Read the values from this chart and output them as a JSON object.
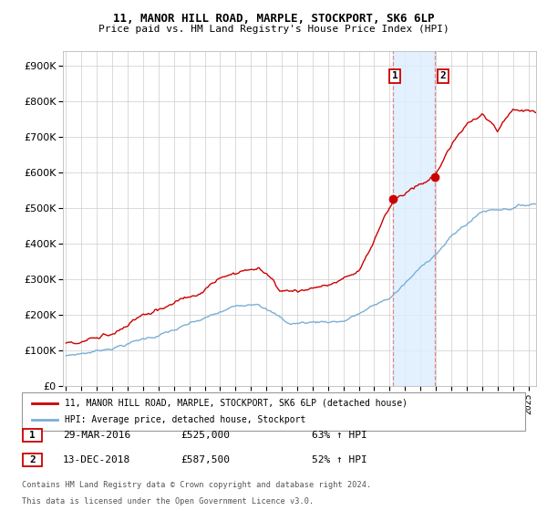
{
  "title1": "11, MANOR HILL ROAD, MARPLE, STOCKPORT, SK6 6LP",
  "title2": "Price paid vs. HM Land Registry's House Price Index (HPI)",
  "legend1": "11, MANOR HILL ROAD, MARPLE, STOCKPORT, SK6 6LP (detached house)",
  "legend2": "HPI: Average price, detached house, Stockport",
  "annotation1_date": "29-MAR-2016",
  "annotation1_price": "£525,000",
  "annotation1_hpi": "63% ↑ HPI",
  "annotation2_date": "13-DEC-2018",
  "annotation2_price": "£587,500",
  "annotation2_hpi": "52% ↑ HPI",
  "footnote1": "Contains HM Land Registry data © Crown copyright and database right 2024.",
  "footnote2": "This data is licensed under the Open Government Licence v3.0.",
  "sale1_x": 2016.24,
  "sale1_y": 525000,
  "sale2_x": 2018.96,
  "sale2_y": 587500,
  "red_color": "#cc0000",
  "blue_color": "#7aafd4",
  "shade_color": "#ddeeff",
  "ylim": [
    0,
    940000
  ],
  "xlim": [
    1994.8,
    2025.5
  ],
  "yticks": [
    0,
    100000,
    200000,
    300000,
    400000,
    500000,
    600000,
    700000,
    800000,
    900000
  ]
}
